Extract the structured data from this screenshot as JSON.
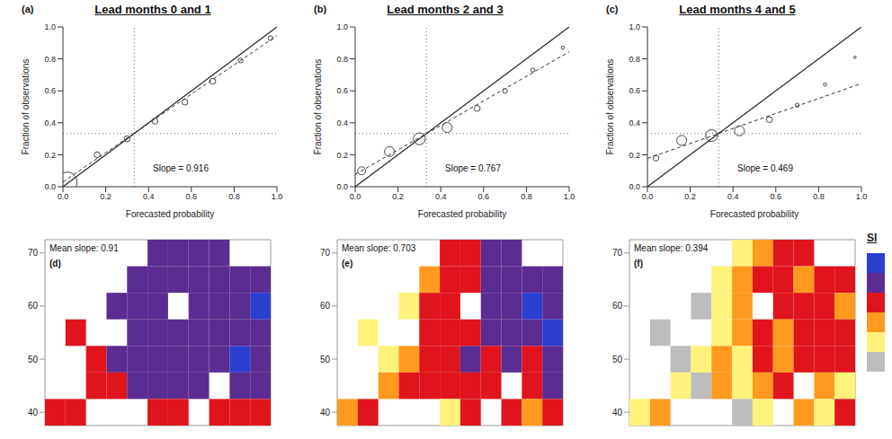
{
  "chart_data": [
    {
      "type": "scatter",
      "title": "Lead months 0 and 1",
      "panel": "(a)",
      "x_label": "Forecasted probability",
      "y_label": "Fraction of observations",
      "xlim": [
        0,
        1
      ],
      "ylim": [
        0,
        1
      ],
      "xticks": [
        {
          "value": 0,
          "label": "0.0"
        },
        {
          "value": 0.2,
          "label": "0.2"
        },
        {
          "value": 0.4,
          "label": "0.4"
        },
        {
          "value": 0.6,
          "label": "0.6"
        },
        {
          "value": 0.8,
          "label": "0.8"
        },
        {
          "value": 1,
          "label": "1.0"
        }
      ],
      "yticks": [
        {
          "value": 0,
          "label": "0.0"
        },
        {
          "value": 0.2,
          "label": "0.2"
        },
        {
          "value": 0.4,
          "label": "0.4"
        },
        {
          "value": 0.6,
          "label": "0.6"
        },
        {
          "value": 0.8,
          "label": "0.8"
        },
        {
          "value": 1,
          "label": "1.0"
        }
      ],
      "reference": 0.333,
      "points": {
        "x": [
          0.02,
          0.16,
          0.3,
          0.43,
          0.57,
          0.7,
          0.83,
          0.97
        ],
        "y": [
          0.03,
          0.2,
          0.3,
          0.41,
          0.53,
          0.66,
          0.79,
          0.93
        ],
        "size": [
          5,
          1.5,
          1.5,
          1.5,
          1.5,
          1.5,
          1.2,
          1.2
        ]
      },
      "fit": {
        "x": [
          0,
          1
        ],
        "y": [
          0.03,
          0.946
        ]
      },
      "annotation": "Slope = 0.916"
    },
    {
      "type": "scatter",
      "title": "Lead months 2 and 3",
      "panel": "(b)",
      "x_label": "Forecasted probability",
      "y_label": "Fraction of observations",
      "xlim": [
        0,
        1
      ],
      "ylim": [
        0,
        1
      ],
      "xticks": [
        {
          "value": 0,
          "label": "0.0"
        },
        {
          "value": 0.2,
          "label": "0.2"
        },
        {
          "value": 0.4,
          "label": "0.4"
        },
        {
          "value": 0.6,
          "label": "0.6"
        },
        {
          "value": 0.8,
          "label": "0.8"
        },
        {
          "value": 1,
          "label": "1.0"
        }
      ],
      "yticks": [
        {
          "value": 0,
          "label": "0.0"
        },
        {
          "value": 0.2,
          "label": "0.2"
        },
        {
          "value": 0.4,
          "label": "0.4"
        },
        {
          "value": 0.6,
          "label": "0.6"
        },
        {
          "value": 0.8,
          "label": "0.8"
        },
        {
          "value": 1,
          "label": "1.0"
        }
      ],
      "reference": 0.333,
      "points": {
        "x": [
          0.03,
          0.16,
          0.3,
          0.43,
          0.57,
          0.7,
          0.83,
          0.97
        ],
        "y": [
          0.1,
          0.22,
          0.3,
          0.37,
          0.49,
          0.6,
          0.73,
          0.87
        ],
        "size": [
          2,
          2.5,
          3,
          2.5,
          1.5,
          1.2,
          1,
          0.8
        ]
      },
      "fit": {
        "x": [
          0,
          1
        ],
        "y": [
          0.077,
          0.844
        ]
      },
      "annotation": "Slope = 0.767"
    },
    {
      "type": "scatter",
      "title": "Lead months 4 and 5",
      "panel": "(c)",
      "x_label": "Forecasted probability",
      "y_label": "Fraction of observations",
      "xlim": [
        0,
        1
      ],
      "ylim": [
        0,
        1
      ],
      "xticks": [
        {
          "value": 0,
          "label": "0.0"
        },
        {
          "value": 0.2,
          "label": "0.2"
        },
        {
          "value": 0.4,
          "label": "0.4"
        },
        {
          "value": 0.6,
          "label": "0.6"
        },
        {
          "value": 0.8,
          "label": "0.8"
        },
        {
          "value": 1,
          "label": "1.0"
        }
      ],
      "yticks": [
        {
          "value": 0,
          "label": "0.0"
        },
        {
          "value": 0.2,
          "label": "0.2"
        },
        {
          "value": 0.4,
          "label": "0.4"
        },
        {
          "value": 0.6,
          "label": "0.6"
        },
        {
          "value": 0.8,
          "label": "0.8"
        },
        {
          "value": 1,
          "label": "1.0"
        }
      ],
      "reference": 0.333,
      "points": {
        "x": [
          0.04,
          0.16,
          0.3,
          0.43,
          0.57,
          0.7,
          0.83,
          0.97
        ],
        "y": [
          0.18,
          0.29,
          0.32,
          0.35,
          0.42,
          0.51,
          0.64,
          0.81
        ],
        "size": [
          1.5,
          2.5,
          3,
          2.5,
          1.5,
          1,
          0.8,
          0.6
        ]
      },
      "fit": {
        "x": [
          0,
          1
        ],
        "y": [
          0.177,
          0.646
        ]
      },
      "annotation": "Slope = 0.469"
    },
    {
      "type": "heatmap",
      "panel": "(d)",
      "annotation": "Mean slope: 0.91",
      "tick_labels": "y",
      "xlim": [
        -12.5,
        42.5
      ],
      "ylim": [
        37.5,
        72.5
      ],
      "yticks": [
        40,
        50,
        60,
        70
      ],
      "lon": [
        -10,
        -5,
        0,
        5,
        10,
        15,
        20,
        25,
        30,
        35,
        40
      ],
      "lat": [
        70,
        65,
        60,
        55,
        50,
        45,
        40
      ],
      "cells": [
        [
          null,
          null,
          null,
          null,
          null,
          "#5b2c91",
          "#5b2c91",
          "#5b2c91",
          "#5b2c91",
          null,
          null
        ],
        [
          null,
          null,
          null,
          null,
          "#5b2c91",
          "#5b2c91",
          "#5b2c91",
          "#5b2c91",
          "#5b2c91",
          "#5b2c91",
          "#5b2c91"
        ],
        [
          null,
          null,
          null,
          "#5b2c91",
          "#5b2c91",
          "#5b2c91",
          null,
          "#5b2c91",
          "#5b2c91",
          "#5b2c91",
          "#2b3fd1"
        ],
        [
          null,
          "#e0141c",
          null,
          null,
          "#5b2c91",
          "#5b2c91",
          "#5b2c91",
          "#5b2c91",
          "#5b2c91",
          "#5b2c91",
          "#5b2c91"
        ],
        [
          null,
          null,
          "#e0141c",
          "#5b2c91",
          "#5b2c91",
          "#5b2c91",
          "#5b2c91",
          "#5b2c91",
          "#5b2c91",
          "#2b3fd1",
          "#5b2c91"
        ],
        [
          null,
          null,
          "#e0141c",
          "#e0141c",
          "#5b2c91",
          "#5b2c91",
          "#5b2c91",
          "#5b2c91",
          null,
          "#5b2c91",
          "#5b2c91"
        ],
        [
          "#e0141c",
          "#e0141c",
          null,
          null,
          null,
          "#e0141c",
          "#e0141c",
          null,
          "#e0141c",
          "#e0141c",
          "#e0141c"
        ]
      ]
    },
    {
      "type": "heatmap",
      "panel": "(e)",
      "annotation": "Mean slope: 0.703",
      "tick_labels": "y",
      "xlim": [
        -12.5,
        42.5
      ],
      "ylim": [
        37.5,
        72.5
      ],
      "yticks": [
        40,
        50,
        60,
        70
      ],
      "lon": [
        -10,
        -5,
        0,
        5,
        10,
        15,
        20,
        25,
        30,
        35,
        40
      ],
      "lat": [
        70,
        65,
        60,
        55,
        50,
        45,
        40
      ],
      "cells": [
        [
          null,
          null,
          null,
          null,
          null,
          "#e0141c",
          "#e0141c",
          "#5b2c91",
          "#5b2c91",
          null,
          null
        ],
        [
          null,
          null,
          null,
          null,
          "#ff9a1f",
          "#e0141c",
          "#e0141c",
          "#5b2c91",
          "#5b2c91",
          "#5b2c91",
          "#5b2c91"
        ],
        [
          null,
          null,
          null,
          "#fff27a",
          "#e0141c",
          "#e0141c",
          null,
          "#5b2c91",
          "#5b2c91",
          "#2b3fd1",
          "#5b2c91"
        ],
        [
          null,
          "#fff27a",
          null,
          null,
          "#e0141c",
          "#e0141c",
          "#e0141c",
          "#5b2c91",
          "#5b2c91",
          "#5b2c91",
          "#2b3fd1"
        ],
        [
          null,
          null,
          "#fff27a",
          "#ff9a1f",
          "#e0141c",
          "#e0141c",
          "#5b2c91",
          "#e0141c",
          "#5b2c91",
          "#e0141c",
          "#5b2c91"
        ],
        [
          null,
          null,
          "#ff9a1f",
          "#e0141c",
          "#e0141c",
          "#e0141c",
          "#e0141c",
          "#e0141c",
          null,
          "#e0141c",
          "#5b2c91"
        ],
        [
          "#ff9a1f",
          "#e0141c",
          null,
          null,
          null,
          "#fff27a",
          "#e0141c",
          null,
          "#e0141c",
          "#ff9a1f",
          "#e0141c"
        ]
      ]
    },
    {
      "type": "heatmap",
      "panel": "(f)",
      "annotation": "Mean slope: 0.394",
      "tick_labels": "y",
      "xlim": [
        -12.5,
        42.5
      ],
      "ylim": [
        37.5,
        72.5
      ],
      "yticks": [
        40,
        50,
        60,
        70
      ],
      "lon": [
        -10,
        -5,
        0,
        5,
        10,
        15,
        20,
        25,
        30,
        35,
        40
      ],
      "lat": [
        70,
        65,
        60,
        55,
        50,
        45,
        40
      ],
      "cells": [
        [
          null,
          null,
          null,
          null,
          null,
          "#fff27a",
          "#ff9a1f",
          "#e0141c",
          "#e0141c",
          null,
          null
        ],
        [
          null,
          null,
          null,
          null,
          "#fff27a",
          "#ff9a1f",
          "#e0141c",
          "#e0141c",
          "#ff9a1f",
          "#e0141c",
          "#e0141c"
        ],
        [
          null,
          null,
          null,
          "#bdbdbd",
          "#fff27a",
          "#ff9a1f",
          null,
          "#e0141c",
          "#e0141c",
          "#e0141c",
          "#ff9a1f"
        ],
        [
          null,
          "#bdbdbd",
          null,
          null,
          "#fff27a",
          "#ff9a1f",
          "#e0141c",
          "#ff9a1f",
          "#e0141c",
          "#e0141c",
          "#e0141c"
        ],
        [
          null,
          null,
          "#bdbdbd",
          "#fff27a",
          "#ff9a1f",
          "#fff27a",
          "#e0141c",
          "#ff9a1f",
          "#e0141c",
          "#e0141c",
          "#e0141c"
        ],
        [
          null,
          null,
          "#fff27a",
          "#bdbdbd",
          "#ff9a1f",
          "#fff27a",
          "#ff9a1f",
          "#e0141c",
          null,
          "#ff9a1f",
          "#fff27a"
        ],
        [
          "#fff27a",
          "#ff9a1f",
          null,
          null,
          null,
          "#bdbdbd",
          "#fff27a",
          null,
          "#ff9a1f",
          "#fff27a",
          "#e0141c"
        ]
      ]
    }
  ],
  "colorbar": {
    "title": "Sl",
    "colors": [
      "#2b3fd1",
      "#5b2c91",
      "#e0141c",
      "#ff9a1f",
      "#fff27a",
      "#bdbdbd"
    ]
  }
}
